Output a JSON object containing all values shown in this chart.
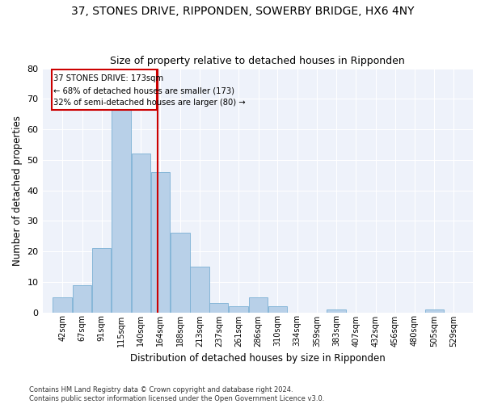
{
  "title_line1": "37, STONES DRIVE, RIPPONDEN, SOWERBY BRIDGE, HX6 4NY",
  "title_line2": "Size of property relative to detached houses in Ripponden",
  "xlabel": "Distribution of detached houses by size in Ripponden",
  "ylabel": "Number of detached properties",
  "footnote": "Contains HM Land Registry data © Crown copyright and database right 2024.\nContains public sector information licensed under the Open Government Licence v3.0.",
  "bin_labels": [
    "42sqm",
    "67sqm",
    "91sqm",
    "115sqm",
    "140sqm",
    "164sqm",
    "188sqm",
    "213sqm",
    "237sqm",
    "261sqm",
    "286sqm",
    "310sqm",
    "334sqm",
    "359sqm",
    "383sqm",
    "407sqm",
    "432sqm",
    "456sqm",
    "480sqm",
    "505sqm",
    "529sqm"
  ],
  "bin_values": [
    42,
    67,
    91,
    115,
    140,
    164,
    188,
    213,
    237,
    261,
    286,
    310,
    334,
    359,
    383,
    407,
    432,
    456,
    480,
    505,
    529
  ],
  "bar_heights": [
    5,
    9,
    21,
    68,
    52,
    46,
    26,
    15,
    3,
    2,
    5,
    2,
    0,
    0,
    1,
    0,
    0,
    0,
    0,
    1,
    0
  ],
  "bar_color": "#b8d0e8",
  "bar_edge_color": "#7aafd4",
  "vline_value": 173,
  "vline_color": "#cc0000",
  "annotation_text_line1": "37 STONES DRIVE: 173sqm",
  "annotation_text_line2": "← 68% of detached houses are smaller (173)",
  "annotation_text_line3": "32% of semi-detached houses are larger (80) →",
  "annotation_box_color": "#cc0000",
  "ylim": [
    0,
    80
  ],
  "yticks": [
    0,
    10,
    20,
    30,
    40,
    50,
    60,
    70,
    80
  ],
  "bg_color": "#eef2fa"
}
